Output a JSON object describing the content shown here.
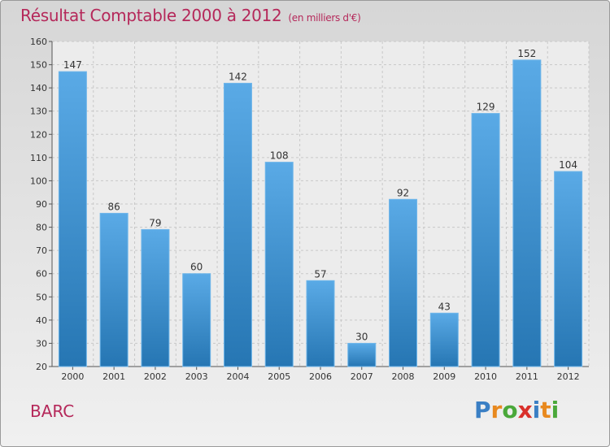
{
  "place_name": "BARC",
  "brand": {
    "text": "Proxiti",
    "letter_colors": [
      "#3a7fc4",
      "#e8891f",
      "#4aa83a",
      "#d9302b",
      "#3a7fc4",
      "#e8891f",
      "#4aa83a"
    ]
  },
  "colors": {
    "bar_top": "#5aaae6",
    "bar_bottom": "#2676b3",
    "title": "#b5285a",
    "grid": "#c8c8c8",
    "axis_text": "#333333"
  },
  "chart_data": {
    "type": "bar",
    "title": "Résultat Comptable 2000 à 2012",
    "subtitle": "(en milliers d'€)",
    "xlabel": "",
    "ylabel": "",
    "categories": [
      "2000",
      "2001",
      "2002",
      "2003",
      "2004",
      "2005",
      "2006",
      "2007",
      "2008",
      "2009",
      "2010",
      "2011",
      "2012"
    ],
    "values": [
      147,
      86,
      79,
      60,
      142,
      108,
      57,
      30,
      92,
      43,
      129,
      152,
      104
    ],
    "ylim": [
      20,
      160
    ],
    "yticks": [
      20,
      30,
      40,
      50,
      60,
      70,
      80,
      90,
      100,
      110,
      120,
      130,
      140,
      150,
      160
    ],
    "grid": true
  }
}
